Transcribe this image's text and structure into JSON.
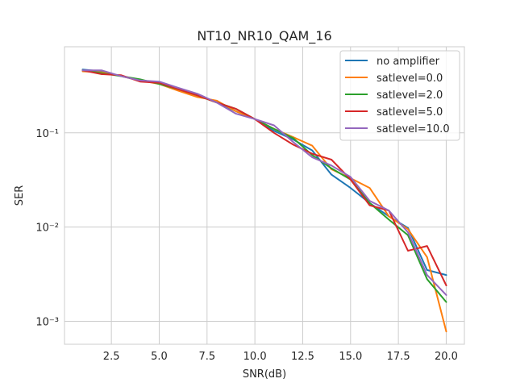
{
  "chart_data": {
    "type": "line",
    "title": "NT10_NR10_QAM_16",
    "xlabel": "SNR(dB)",
    "ylabel": "SER",
    "xlim": [
      0.05,
      20.95
    ],
    "ylim": [
      0.00057,
      0.82
    ],
    "yscale": "log",
    "grid": true,
    "legend_position": "top-right",
    "xticks": [
      2.5,
      5.0,
      7.5,
      10.0,
      12.5,
      15.0,
      17.5,
      20.0
    ],
    "xtick_labels": [
      "2.5",
      "5.0",
      "7.5",
      "10.0",
      "12.5",
      "15.0",
      "17.5",
      "20.0"
    ],
    "yticks": [
      0.001,
      0.01,
      0.1
    ],
    "ytick_labels": [
      "10⁻³",
      "10⁻²",
      "10⁻¹"
    ],
    "x": [
      1,
      2,
      3,
      4,
      5,
      6,
      7,
      8,
      9,
      10,
      11,
      12,
      13,
      14,
      15,
      16,
      17,
      18,
      19,
      20
    ],
    "series": [
      {
        "name": "no amplifier",
        "color": "#1f77b4",
        "values": [
          0.47,
          0.45,
          0.4,
          0.36,
          0.34,
          0.29,
          0.25,
          0.21,
          0.17,
          0.14,
          0.105,
          0.085,
          0.065,
          0.036,
          0.026,
          0.018,
          0.013,
          0.0098,
          0.0035,
          0.0031
        ]
      },
      {
        "name": "satlevel=0.0",
        "color": "#ff7f0e",
        "values": [
          0.45,
          0.44,
          0.4,
          0.36,
          0.33,
          0.28,
          0.24,
          0.22,
          0.17,
          0.14,
          0.11,
          0.09,
          0.073,
          0.041,
          0.033,
          0.026,
          0.013,
          0.0095,
          0.0048,
          0.00078
        ]
      },
      {
        "name": "satlevel=2.0",
        "color": "#2ca02c",
        "values": [
          0.46,
          0.43,
          0.4,
          0.37,
          0.33,
          0.29,
          0.25,
          0.21,
          0.18,
          0.14,
          0.11,
          0.088,
          0.058,
          0.042,
          0.032,
          0.018,
          0.012,
          0.0082,
          0.0028,
          0.0016
        ]
      },
      {
        "name": "satlevel=5.0",
        "color": "#d62728",
        "values": [
          0.46,
          0.42,
          0.41,
          0.35,
          0.34,
          0.29,
          0.25,
          0.21,
          0.18,
          0.14,
          0.1,
          0.075,
          0.06,
          0.052,
          0.032,
          0.017,
          0.015,
          0.0056,
          0.0063,
          0.0024
        ]
      },
      {
        "name": "satlevel=10.0",
        "color": "#9467bd",
        "values": [
          0.46,
          0.46,
          0.4,
          0.36,
          0.35,
          0.3,
          0.26,
          0.21,
          0.16,
          0.14,
          0.12,
          0.08,
          0.055,
          0.045,
          0.034,
          0.019,
          0.015,
          0.0088,
          0.0031,
          0.0019
        ]
      }
    ]
  }
}
